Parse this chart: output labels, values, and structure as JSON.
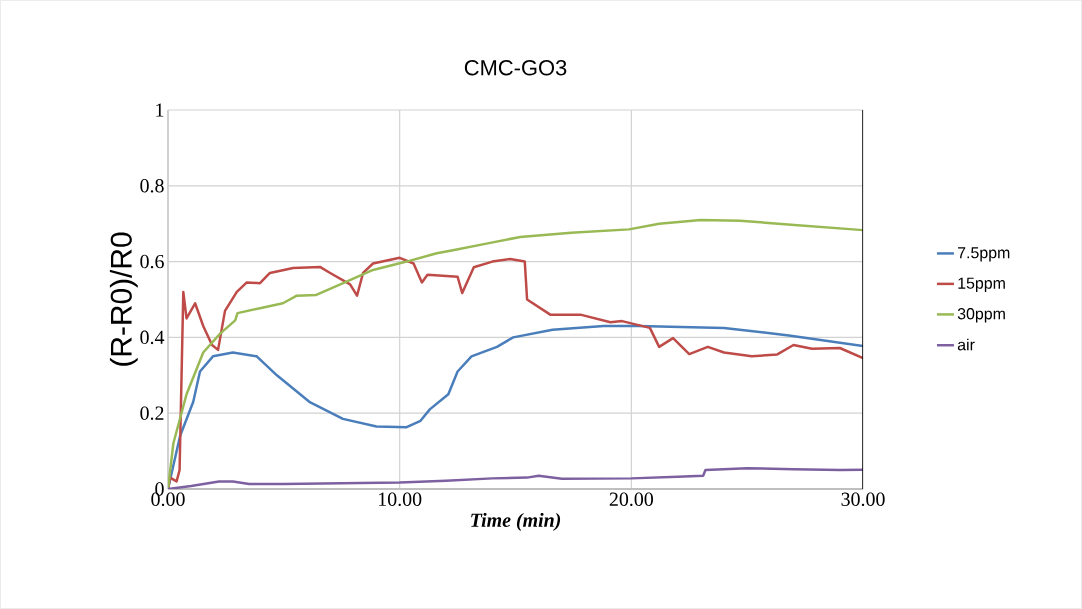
{
  "chart_data": {
    "type": "line",
    "title": "CMC-GO3",
    "xlabel": "Time (min)",
    "ylabel": "(R-R0)/R0",
    "xlim": [
      0,
      30
    ],
    "ylim": [
      0,
      1
    ],
    "xticks": [
      {
        "value": 0,
        "label": "0.00"
      },
      {
        "value": 10,
        "label": "10.00"
      },
      {
        "value": 20,
        "label": "20.00"
      },
      {
        "value": 30,
        "label": "30.00"
      }
    ],
    "yticks": [
      0,
      0.2,
      0.4,
      0.6,
      0.8,
      1
    ],
    "grid": true,
    "legend": "right",
    "marker": "none",
    "line_style": "solid",
    "series": [
      {
        "name": "7.5ppm",
        "color": "#4a7ebb",
        "x": [
          0,
          0.52,
          1.09,
          1.38,
          1.94,
          2.8,
          3.83,
          4.7,
          6.1,
          7.55,
          9.0,
          10.3,
          10.9,
          11.3,
          12.1,
          12.5,
          13.1,
          14.2,
          14.9,
          16.6,
          18.8,
          20.3,
          24.0,
          26.8,
          30
        ],
        "values": [
          0,
          0.14,
          0.23,
          0.31,
          0.35,
          0.36,
          0.35,
          0.3,
          0.23,
          0.185,
          0.165,
          0.163,
          0.18,
          0.21,
          0.25,
          0.31,
          0.35,
          0.375,
          0.4,
          0.42,
          0.43,
          0.43,
          0.425,
          0.405,
          0.377
        ]
      },
      {
        "name": "15ppm",
        "color": "#be4b48",
        "x": [
          0,
          0.09,
          0.37,
          0.5,
          0.66,
          0.8,
          1.17,
          1.52,
          1.9,
          2.16,
          2.46,
          2.97,
          3.4,
          3.97,
          4.4,
          5.4,
          6.56,
          7.0,
          7.86,
          8.16,
          8.42,
          8.85,
          10.0,
          10.6,
          10.96,
          11.2,
          12.5,
          12.7,
          13.2,
          14.0,
          14.77,
          15.4,
          15.5,
          16.5,
          17.8,
          19.1,
          19.6,
          20.8,
          21.2,
          21.8,
          22.5,
          23.3,
          24.0,
          25.2,
          26.3,
          27.0,
          27.8,
          29.0,
          30
        ],
        "values": [
          0,
          0.03,
          0.02,
          0.05,
          0.52,
          0.45,
          0.49,
          0.43,
          0.38,
          0.367,
          0.47,
          0.52,
          0.545,
          0.543,
          0.57,
          0.583,
          0.586,
          0.57,
          0.54,
          0.51,
          0.57,
          0.595,
          0.61,
          0.595,
          0.545,
          0.565,
          0.56,
          0.517,
          0.585,
          0.6,
          0.607,
          0.6,
          0.5,
          0.46,
          0.46,
          0.44,
          0.443,
          0.425,
          0.375,
          0.398,
          0.356,
          0.375,
          0.36,
          0.35,
          0.355,
          0.38,
          0.37,
          0.372,
          0.345
        ]
      },
      {
        "name": "30ppm",
        "color": "#98b954",
        "x": [
          0,
          0.23,
          0.8,
          1.52,
          2.25,
          2.9,
          3.0,
          3.97,
          4.96,
          5.56,
          6.4,
          7.56,
          8.85,
          10.3,
          11.6,
          12.3,
          13.8,
          15.2,
          17.4,
          19.9,
          21.2,
          23.0,
          24.7,
          26.9,
          30
        ],
        "values": [
          0,
          0.12,
          0.25,
          0.36,
          0.41,
          0.445,
          0.464,
          0.477,
          0.49,
          0.51,
          0.512,
          0.543,
          0.578,
          0.6,
          0.622,
          0.63,
          0.648,
          0.665,
          0.676,
          0.685,
          0.7,
          0.71,
          0.708,
          0.697,
          0.683
        ]
      },
      {
        "name": "air",
        "color": "#7d60a0",
        "x": [
          0,
          1,
          2.2,
          2.8,
          3.5,
          5,
          10,
          12,
          14,
          15.5,
          16,
          17,
          20,
          22,
          23.1,
          23.2,
          25,
          27,
          29,
          30
        ],
        "values": [
          0,
          0.008,
          0.02,
          0.02,
          0.013,
          0.013,
          0.017,
          0.022,
          0.028,
          0.03,
          0.035,
          0.027,
          0.028,
          0.032,
          0.035,
          0.05,
          0.055,
          0.052,
          0.05,
          0.051
        ]
      }
    ]
  }
}
